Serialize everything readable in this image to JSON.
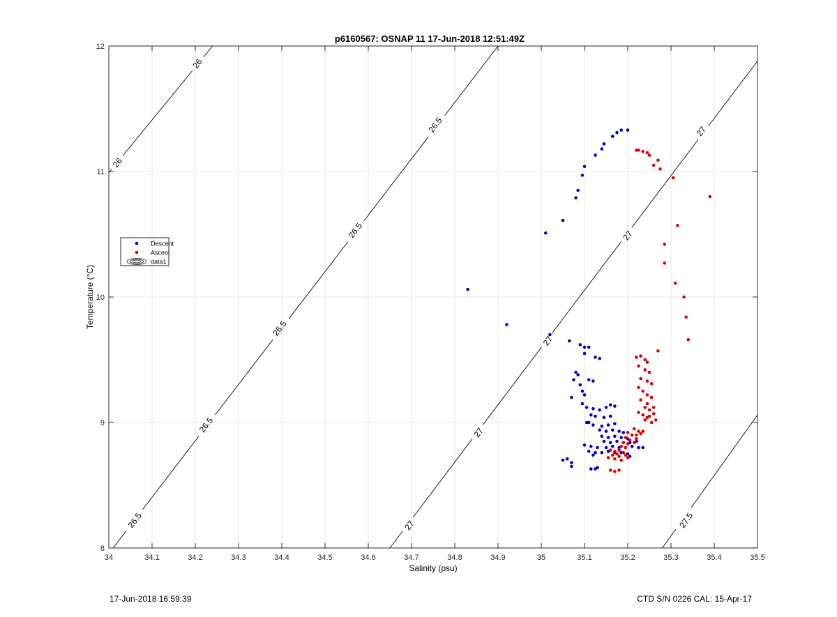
{
  "chart_data": {
    "type": "scatter",
    "title": "p6160567: OSNAP 11 17-Jun-2018 12:51:49Z",
    "xlabel": "Salinity (psu)",
    "ylabel": "Temperature (°C)",
    "xlim": [
      34,
      35.5
    ],
    "ylim": [
      8,
      12
    ],
    "xticks": [
      34,
      34.1,
      34.2,
      34.3,
      34.4,
      34.5,
      34.6,
      34.7,
      34.8,
      34.9,
      35,
      35.1,
      35.2,
      35.3,
      35.4,
      35.5
    ],
    "yticks": [
      8,
      9,
      10,
      11,
      12
    ],
    "xtick_labels": [
      "34",
      "34.1",
      "34.2",
      "34.3",
      "34.4",
      "34.5",
      "34.6",
      "34.7",
      "34.8",
      "34.9",
      "35",
      "35.1",
      "35.2",
      "35.3",
      "35.4",
      "35.5"
    ],
    "ytick_labels": [
      "8",
      "9",
      "10",
      "11",
      "12"
    ],
    "grid": true,
    "legend_position": "left",
    "legend": [
      {
        "label": "Descent",
        "color": "#0000cc",
        "marker": "dot"
      },
      {
        "label": "Ascent",
        "color": "#dd0000",
        "marker": "dot"
      },
      {
        "label": "data1",
        "color": "#000000",
        "marker": "contour"
      }
    ],
    "contours": [
      {
        "label": "26",
        "points": [
          [
            34.0,
            10.99
          ],
          [
            34.24,
            12.0
          ]
        ],
        "label_positions": [
          [
            34.02,
            11.07
          ],
          [
            34.205,
            11.86
          ]
        ]
      },
      {
        "label": "26.5",
        "points": [
          [
            34.01,
            8.0
          ],
          [
            34.9,
            12.0
          ]
        ],
        "label_positions": [
          [
            34.06,
            8.22
          ],
          [
            34.225,
            8.98
          ],
          [
            34.395,
            9.75
          ],
          [
            34.57,
            10.53
          ],
          [
            34.755,
            11.37
          ]
        ]
      },
      {
        "label": "27",
        "points": [
          [
            34.65,
            8.0
          ],
          [
            35.5,
            11.88
          ]
        ],
        "label_positions": [
          [
            34.695,
            8.18
          ],
          [
            34.855,
            8.92
          ],
          [
            35.015,
            9.65
          ],
          [
            35.2,
            10.49
          ],
          [
            35.37,
            11.32
          ]
        ]
      },
      {
        "label": "27.5",
        "points": [
          [
            35.28,
            8.0
          ],
          [
            35.5,
            9.06
          ]
        ],
        "label_positions": [
          [
            35.335,
            8.22
          ]
        ]
      }
    ],
    "series": [
      {
        "name": "Descent",
        "color": "#0000cc",
        "points": [
          [
            34.83,
            10.06
          ],
          [
            34.92,
            9.78
          ],
          [
            35.01,
            10.51
          ],
          [
            35.05,
            10.61
          ],
          [
            35.02,
            9.7
          ],
          [
            35.08,
            10.79
          ],
          [
            35.085,
            10.85
          ],
          [
            35.095,
            10.97
          ],
          [
            35.1,
            11.04
          ],
          [
            35.125,
            11.13
          ],
          [
            35.14,
            11.18
          ],
          [
            35.145,
            11.22
          ],
          [
            35.165,
            11.28
          ],
          [
            35.175,
            11.31
          ],
          [
            35.185,
            11.33
          ],
          [
            35.2,
            11.33
          ],
          [
            35.065,
            9.65
          ],
          [
            35.09,
            9.62
          ],
          [
            35.1,
            9.6
          ],
          [
            35.11,
            9.6
          ],
          [
            35.1,
            9.55
          ],
          [
            35.125,
            9.52
          ],
          [
            35.135,
            9.51
          ],
          [
            35.08,
            9.4
          ],
          [
            35.085,
            9.38
          ],
          [
            35.075,
            9.34
          ],
          [
            35.09,
            9.3
          ],
          [
            35.11,
            9.34
          ],
          [
            35.12,
            9.33
          ],
          [
            35.095,
            9.25
          ],
          [
            35.1,
            9.22
          ],
          [
            35.07,
            9.2
          ],
          [
            35.095,
            9.15
          ],
          [
            35.105,
            9.12
          ],
          [
            35.12,
            9.11
          ],
          [
            35.135,
            9.1
          ],
          [
            35.15,
            9.12
          ],
          [
            35.16,
            9.14
          ],
          [
            35.17,
            9.13
          ],
          [
            35.115,
            9.06
          ],
          [
            35.125,
            9.05
          ],
          [
            35.145,
            9.04
          ],
          [
            35.16,
            9.05
          ],
          [
            35.11,
            9.0
          ],
          [
            35.12,
            8.98
          ],
          [
            35.14,
            8.97
          ],
          [
            35.155,
            8.98
          ],
          [
            35.17,
            8.99
          ],
          [
            35.135,
            8.94
          ],
          [
            35.15,
            8.93
          ],
          [
            35.165,
            8.94
          ],
          [
            35.18,
            8.93
          ],
          [
            35.19,
            8.92
          ],
          [
            35.14,
            8.89
          ],
          [
            35.155,
            8.88
          ],
          [
            35.17,
            8.89
          ],
          [
            35.185,
            8.88
          ],
          [
            35.2,
            8.87
          ],
          [
            35.145,
            8.85
          ],
          [
            35.16,
            8.84
          ],
          [
            35.175,
            8.85
          ],
          [
            35.19,
            8.84
          ],
          [
            35.205,
            8.84
          ],
          [
            35.22,
            8.85
          ],
          [
            35.1,
            8.82
          ],
          [
            35.115,
            8.81
          ],
          [
            35.13,
            8.8
          ],
          [
            35.15,
            8.8
          ],
          [
            35.165,
            8.81
          ],
          [
            35.18,
            8.8
          ],
          [
            35.195,
            8.8
          ],
          [
            35.21,
            8.81
          ],
          [
            35.225,
            8.8
          ],
          [
            35.235,
            8.8
          ],
          [
            35.11,
            8.77
          ],
          [
            35.125,
            8.76
          ],
          [
            35.14,
            8.76
          ],
          [
            35.155,
            8.77
          ],
          [
            35.17,
            8.76
          ],
          [
            35.185,
            8.76
          ],
          [
            35.2,
            8.75
          ],
          [
            35.205,
            8.73
          ],
          [
            35.12,
            8.74
          ],
          [
            35.05,
            8.7
          ],
          [
            35.06,
            8.71
          ],
          [
            35.07,
            8.68
          ],
          [
            35.07,
            8.65
          ],
          [
            35.115,
            8.63
          ],
          [
            35.125,
            8.63
          ],
          [
            35.13,
            8.64
          ],
          [
            35.105,
            9.0
          ]
        ]
      },
      {
        "name": "Ascent",
        "color": "#dd0000",
        "points": [
          [
            35.22,
            11.17
          ],
          [
            35.225,
            11.17
          ],
          [
            35.235,
            11.16
          ],
          [
            35.245,
            11.15
          ],
          [
            35.25,
            11.13
          ],
          [
            35.26,
            11.05
          ],
          [
            35.27,
            11.09
          ],
          [
            35.275,
            11.02
          ],
          [
            35.305,
            10.95
          ],
          [
            35.39,
            10.8
          ],
          [
            35.315,
            10.57
          ],
          [
            35.285,
            10.42
          ],
          [
            35.285,
            10.27
          ],
          [
            35.31,
            10.11
          ],
          [
            35.33,
            10.0
          ],
          [
            35.335,
            9.84
          ],
          [
            35.34,
            9.66
          ],
          [
            35.27,
            9.57
          ],
          [
            35.22,
            9.52
          ],
          [
            35.23,
            9.53
          ],
          [
            35.24,
            9.5
          ],
          [
            35.245,
            9.48
          ],
          [
            35.225,
            9.45
          ],
          [
            35.24,
            9.42
          ],
          [
            35.25,
            9.4
          ],
          [
            35.23,
            9.35
          ],
          [
            35.245,
            9.33
          ],
          [
            35.255,
            9.31
          ],
          [
            35.225,
            9.28
          ],
          [
            35.235,
            9.25
          ],
          [
            35.245,
            9.22
          ],
          [
            35.255,
            9.2
          ],
          [
            35.23,
            9.18
          ],
          [
            35.245,
            9.15
          ],
          [
            35.24,
            9.12
          ],
          [
            35.25,
            9.1
          ],
          [
            35.26,
            9.12
          ],
          [
            35.225,
            9.08
          ],
          [
            35.235,
            9.06
          ],
          [
            35.25,
            9.05
          ],
          [
            35.26,
            9.07
          ],
          [
            35.24,
            9.02
          ],
          [
            35.255,
            9.0
          ],
          [
            35.245,
            9.04
          ],
          [
            35.265,
            9.02
          ],
          [
            35.215,
            8.95
          ],
          [
            35.225,
            8.93
          ],
          [
            35.2,
            8.92
          ],
          [
            35.21,
            8.9
          ],
          [
            35.23,
            8.91
          ],
          [
            35.195,
            8.88
          ],
          [
            35.205,
            8.86
          ],
          [
            35.22,
            8.87
          ],
          [
            35.19,
            8.84
          ],
          [
            35.2,
            8.83
          ],
          [
            35.215,
            8.84
          ],
          [
            35.185,
            8.81
          ],
          [
            35.195,
            8.8
          ],
          [
            35.16,
            8.78
          ],
          [
            35.17,
            8.77
          ],
          [
            35.18,
            8.78
          ],
          [
            35.19,
            8.76
          ],
          [
            35.175,
            8.75
          ],
          [
            35.165,
            8.74
          ],
          [
            35.18,
            8.73
          ],
          [
            35.195,
            8.74
          ],
          [
            35.2,
            8.72
          ],
          [
            35.17,
            8.71
          ],
          [
            35.185,
            8.7
          ],
          [
            35.155,
            8.72
          ],
          [
            35.16,
            8.62
          ],
          [
            35.17,
            8.61
          ],
          [
            35.18,
            8.62
          ],
          [
            35.235,
            8.93
          ],
          [
            35.22,
            8.9
          ]
        ]
      }
    ]
  },
  "footer": {
    "timestamp": "17-Jun-2018 16:59:39",
    "instrument": "CTD S/N 0226  CAL: 15-Apr-17"
  }
}
